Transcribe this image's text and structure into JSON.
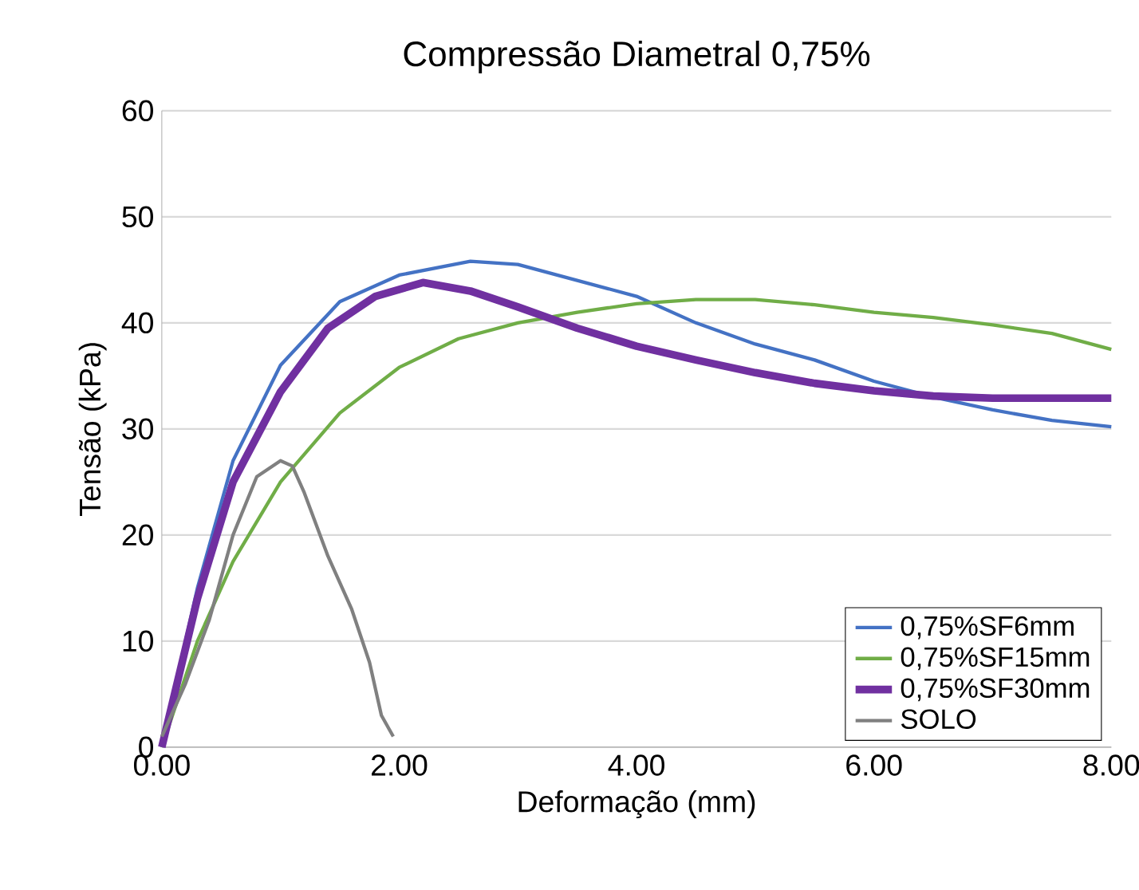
{
  "chart_data": {
    "type": "line",
    "title": "Compressão Diametral 0,75%",
    "xlabel": "Deformação (mm)",
    "ylabel": "Tensão (kPa)",
    "xlim": [
      0,
      8
    ],
    "xticks": [
      {
        "value": 0,
        "label": "0.00"
      },
      {
        "value": 2,
        "label": "2.00"
      },
      {
        "value": 4,
        "label": "4.00"
      },
      {
        "value": 6,
        "label": "6.00"
      },
      {
        "value": 8,
        "label": "8.00"
      }
    ],
    "ylim": [
      0,
      60
    ],
    "yticks": [
      0,
      10,
      20,
      30,
      40,
      50,
      60
    ],
    "grid": "y",
    "legend": "bottom right",
    "marker": "none",
    "series": [
      {
        "name": "0,75%SF6mm",
        "color": "#4472c4",
        "x": [
          0,
          0.3,
          0.6,
          1.0,
          1.5,
          2.0,
          2.6,
          3.0,
          3.5,
          4.0,
          4.5,
          5.0,
          5.5,
          6.0,
          6.5,
          7.0,
          7.5,
          8.0
        ],
        "values": [
          0,
          15,
          27,
          36,
          42,
          44.5,
          45.8,
          45.5,
          44,
          42.5,
          40,
          38,
          36.5,
          34.5,
          33,
          31.8,
          30.8,
          30.2
        ]
      },
      {
        "name": "0,75%SF15mm",
        "color": "#70ad47",
        "x": [
          0,
          0.3,
          0.6,
          1.0,
          1.5,
          2.0,
          2.5,
          3.0,
          3.5,
          4.0,
          4.5,
          5.0,
          5.5,
          6.0,
          6.5,
          7.0,
          7.5,
          8.0
        ],
        "values": [
          0,
          10,
          17.5,
          25,
          31.5,
          35.8,
          38.5,
          40,
          41,
          41.8,
          42.2,
          42.2,
          41.7,
          41,
          40.5,
          39.8,
          39,
          37.5
        ]
      },
      {
        "name": "0,75%SF30mm",
        "color": "#7030a0",
        "x": [
          0,
          0.3,
          0.6,
          1.0,
          1.4,
          1.8,
          2.2,
          2.6,
          3.0,
          3.5,
          4.0,
          4.5,
          5.0,
          5.5,
          6.0,
          6.5,
          7.0,
          7.5,
          8.0
        ],
        "values": [
          0,
          14,
          25,
          33.5,
          39.5,
          42.5,
          43.8,
          43,
          41.5,
          39.5,
          37.8,
          36.5,
          35.3,
          34.3,
          33.6,
          33.1,
          32.9,
          32.9,
          32.9
        ]
      },
      {
        "name": "SOLO",
        "color": "#808080",
        "x": [
          0,
          0.2,
          0.4,
          0.6,
          0.8,
          1.0,
          1.1,
          1.2,
          1.4,
          1.6,
          1.75,
          1.85,
          1.95
        ],
        "values": [
          1,
          6,
          12,
          20,
          25.5,
          27,
          26.5,
          24,
          18,
          13,
          8,
          3,
          1
        ]
      }
    ]
  }
}
